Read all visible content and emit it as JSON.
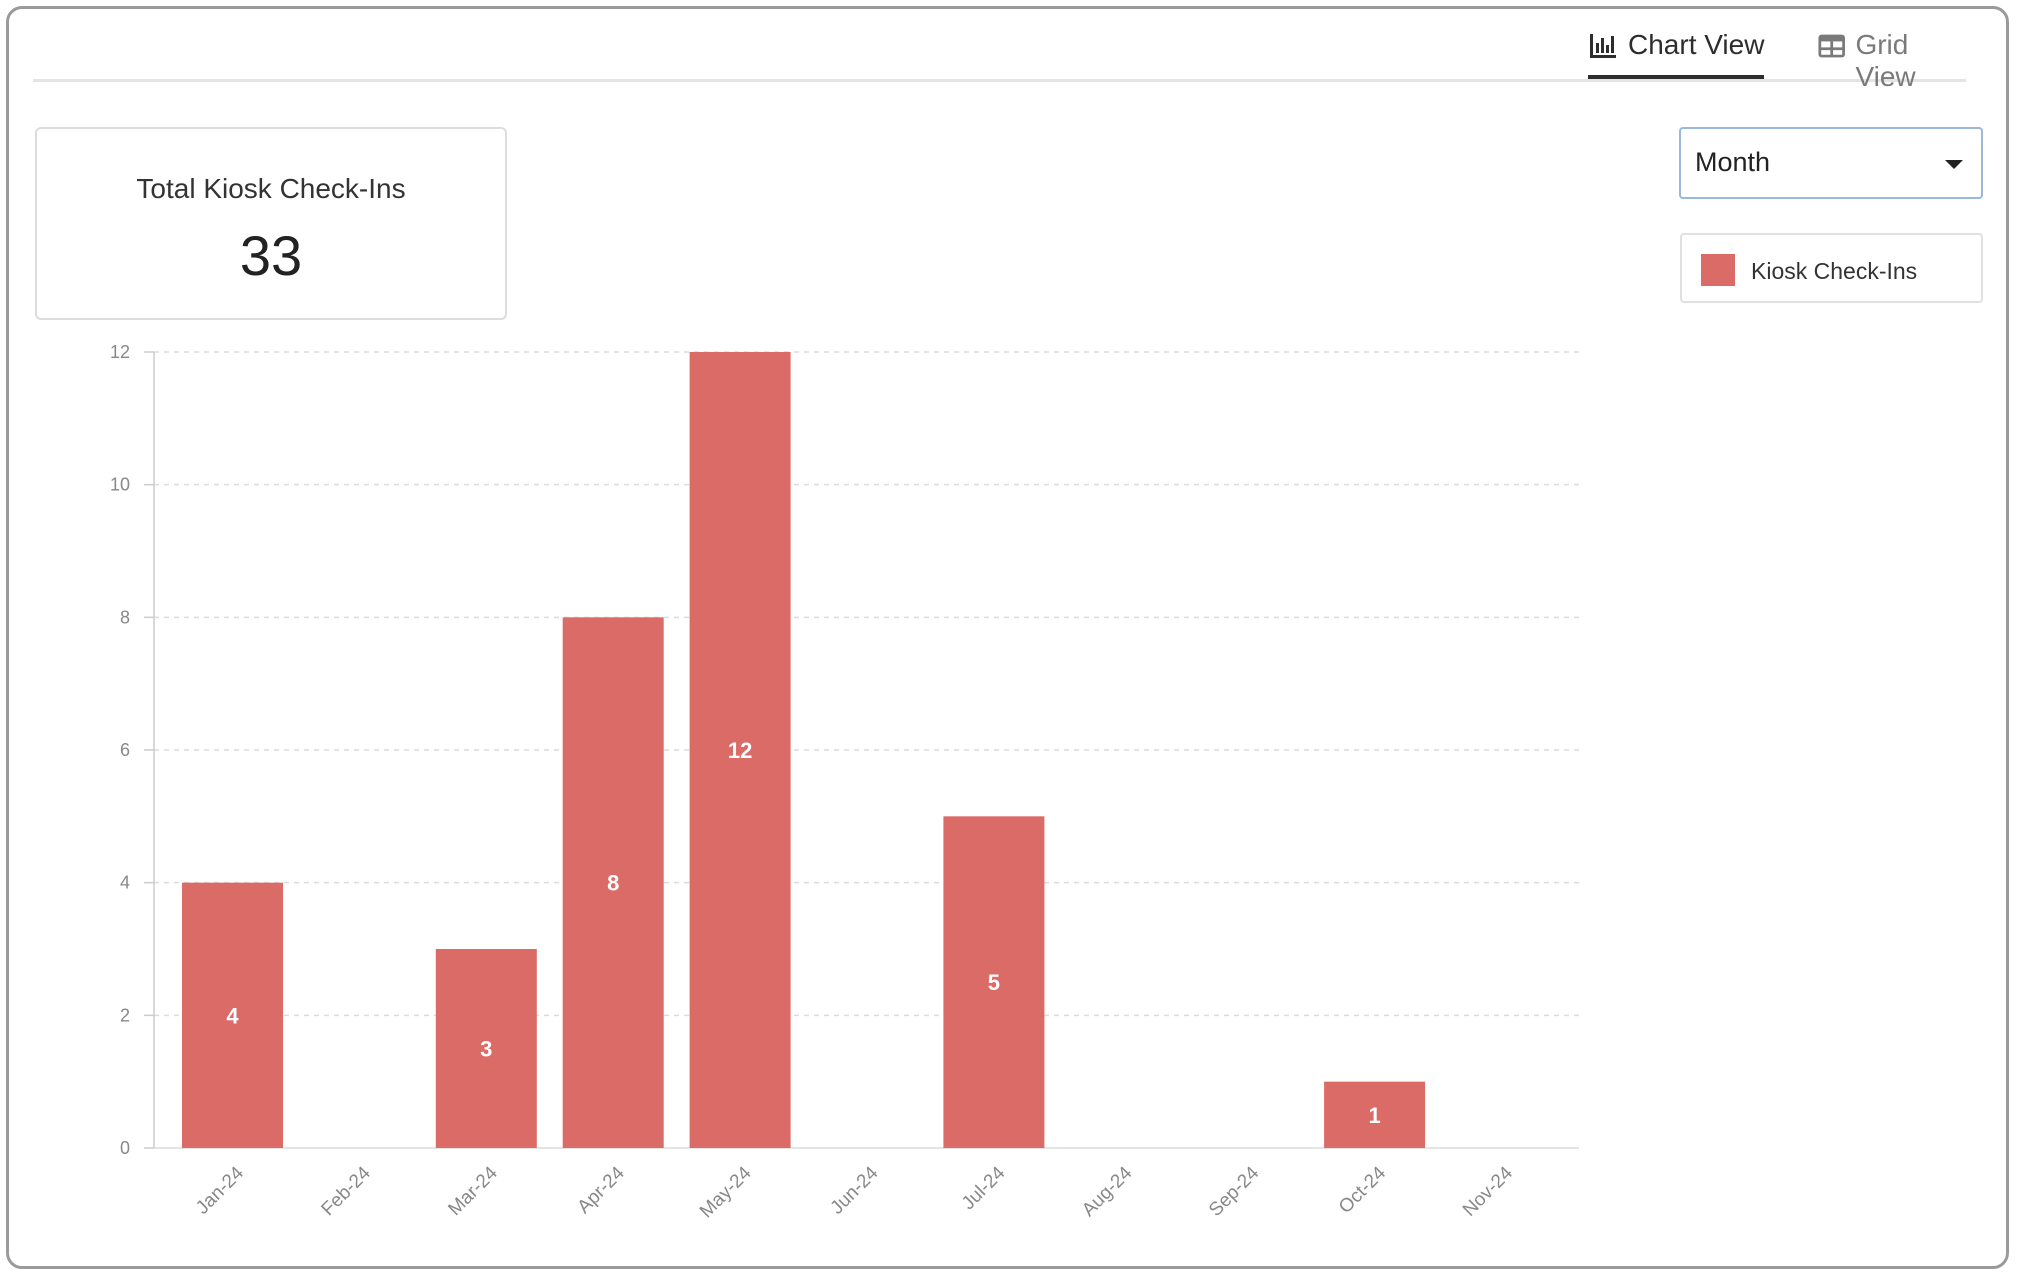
{
  "tabs": [
    {
      "label": "Chart View",
      "icon": "bar-chart-icon",
      "active": true
    },
    {
      "label": "Grid View",
      "icon": "grid-icon",
      "active": false
    }
  ],
  "summary": {
    "label": "Total Kiosk Check-Ins",
    "value": "33"
  },
  "period_select": {
    "value": "Month"
  },
  "legend": {
    "label": "Kiosk Check-Ins",
    "color": "#db6b66"
  },
  "chart_data": {
    "type": "bar",
    "categories": [
      "Jan-24",
      "Feb-24",
      "Mar-24",
      "Apr-24",
      "May-24",
      "Jun-24",
      "Jul-24",
      "Aug-24",
      "Sep-24",
      "Oct-24",
      "Nov-24"
    ],
    "series": [
      {
        "name": "Kiosk Check-Ins",
        "values": [
          4,
          0,
          3,
          8,
          12,
          0,
          5,
          0,
          0,
          1,
          0
        ],
        "color": "#db6b66"
      }
    ],
    "ylim": [
      0,
      12
    ],
    "yticks": [
      0,
      2,
      4,
      6,
      8,
      10,
      12
    ],
    "grid": true,
    "legend_position": "top-right"
  }
}
